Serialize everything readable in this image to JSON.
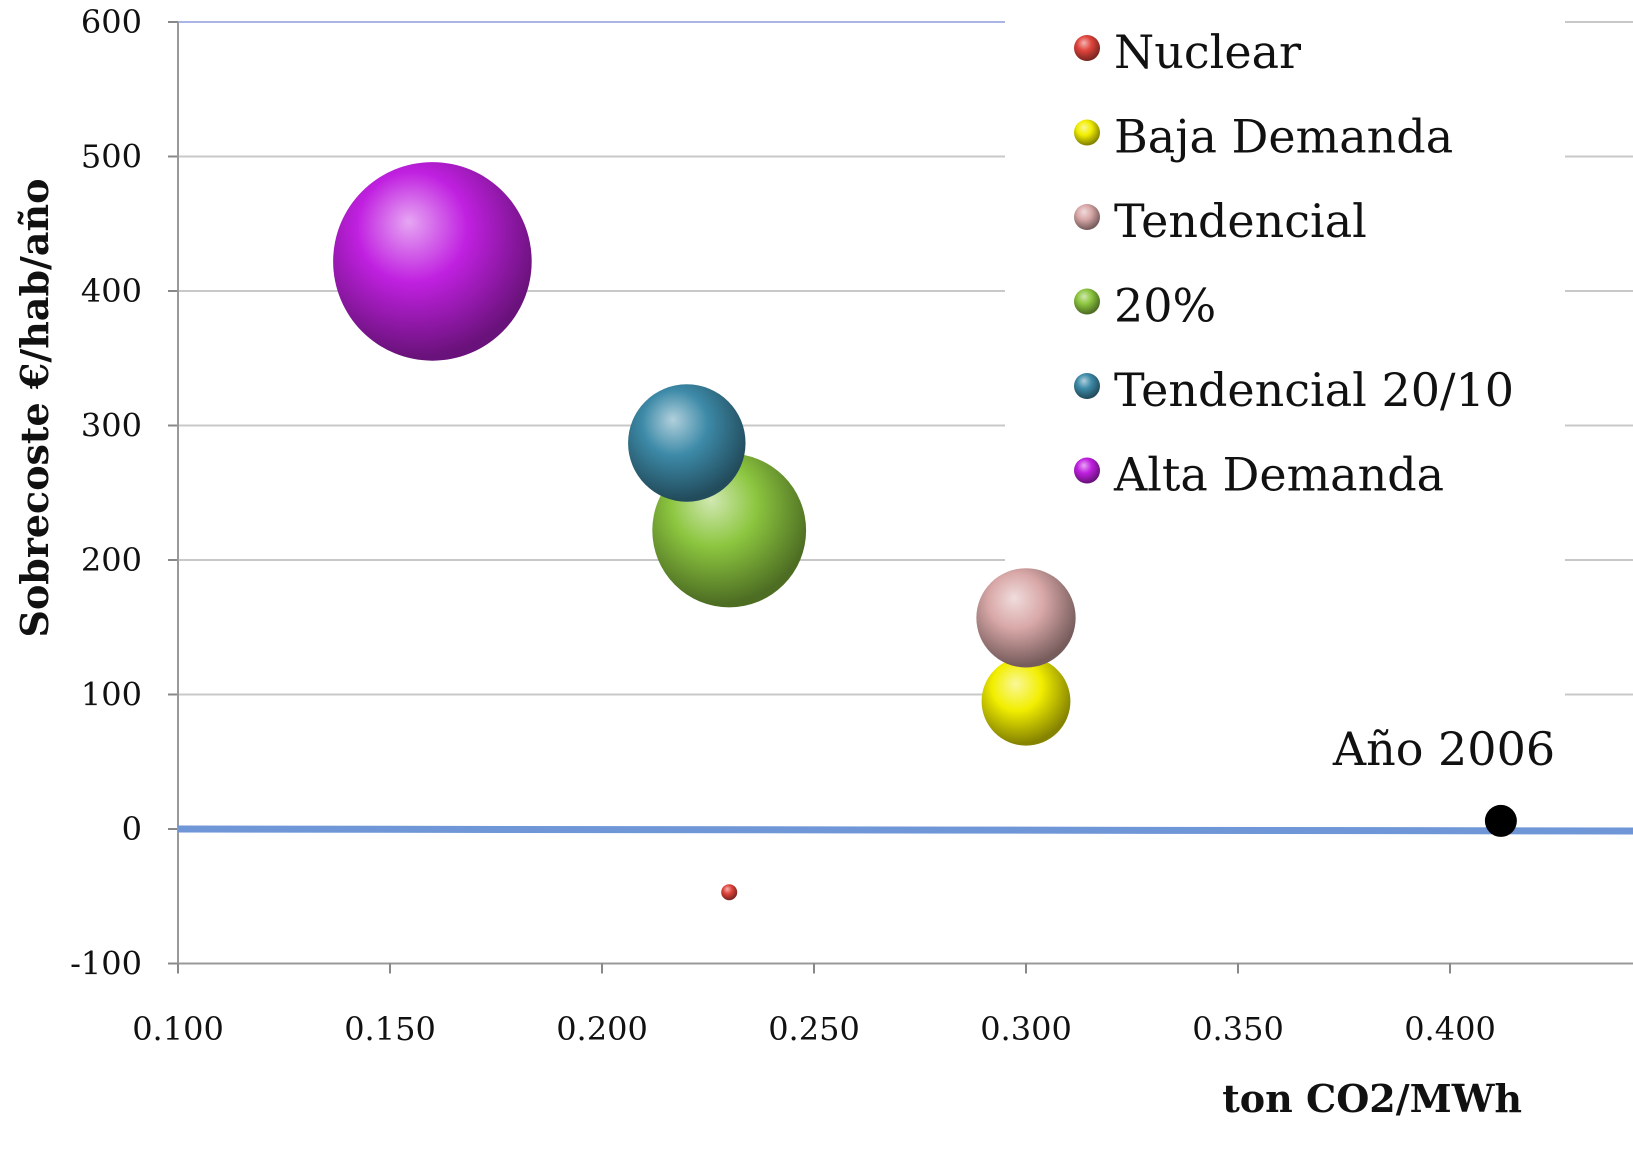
{
  "chart_data": {
    "type": "scatter",
    "subtype": "bubble",
    "title": "",
    "xlabel": "ton CO2/MWh",
    "ylabel": "Sobrecoste €/hab/año",
    "xlim": [
      0.1,
      0.43
    ],
    "ylim": [
      -100,
      600
    ],
    "x_ticks": [
      "0.100",
      "0.150",
      "0.200",
      "0.250",
      "0.300",
      "0.350",
      "0.400"
    ],
    "y_ticks": [
      "600",
      "500",
      "400",
      "300",
      "200",
      "100",
      "0",
      "-100"
    ],
    "grid": true,
    "legend_position": "top-right",
    "series": [
      {
        "name": "Nuclear",
        "color": "#e0443c",
        "x": 0.23,
        "y": -47,
        "size": 1
      },
      {
        "name": "Baja Demanda",
        "color": "#f2ee00",
        "x": 0.3,
        "y": 95,
        "size": 4
      },
      {
        "name": "Tendencial",
        "color": "#d9a8a8",
        "x": 0.3,
        "y": 157,
        "size": 5
      },
      {
        "name": "20%",
        "color": "#8cc63f",
        "x": 0.23,
        "y": 222,
        "size": 12
      },
      {
        "name": "Tendencial 20/10",
        "color": "#3d8aa8",
        "x": 0.22,
        "y": 287,
        "size": 7
      },
      {
        "name": "Alta Demanda",
        "color": "#c020e0",
        "x": 0.16,
        "y": 422,
        "size": 20
      }
    ],
    "reference_line": {
      "y": 0,
      "color": "#6f96d6"
    },
    "annotation": {
      "text": "Año 2006",
      "x": 0.412,
      "y": 6,
      "marker_color": "#000000"
    }
  }
}
